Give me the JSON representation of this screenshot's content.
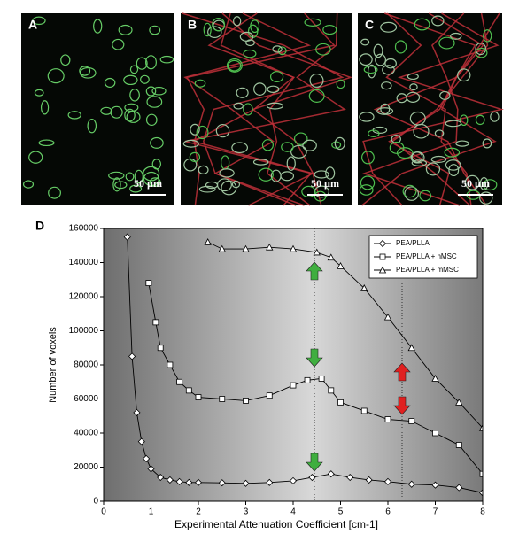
{
  "panels": [
    {
      "label": "A",
      "scale": "50 µm"
    },
    {
      "label": "B",
      "scale": "50 µm"
    },
    {
      "label": "C",
      "scale": "50 µm"
    }
  ],
  "chart_data": {
    "type": "line",
    "label": "D",
    "xlabel": "Experimental Attenuation Coefficient [cm-1]",
    "ylabel": "Number of voxels",
    "xlim": [
      0,
      8
    ],
    "xticks": [
      0,
      1,
      2,
      3,
      4,
      5,
      6,
      7,
      8
    ],
    "ylim": [
      0,
      160000
    ],
    "yticks": [
      0,
      20000,
      40000,
      60000,
      80000,
      100000,
      120000,
      140000,
      160000
    ],
    "legend": "top-right",
    "series": [
      {
        "name": "PEA/PLLA",
        "color": "#000000",
        "marker": "diamond",
        "x": [
          0.5,
          0.6,
          0.7,
          0.8,
          0.9,
          1.0,
          1.2,
          1.4,
          1.6,
          1.8,
          2.0,
          2.5,
          3.0,
          3.5,
          4.0,
          4.4,
          4.8,
          5.2,
          5.6,
          6.0,
          6.5,
          7.0,
          7.5,
          8.0
        ],
        "values": [
          155000,
          85000,
          52000,
          35000,
          25000,
          19000,
          14000,
          12500,
          11500,
          11000,
          11000,
          10800,
          10500,
          11000,
          12000,
          14000,
          16000,
          14000,
          12500,
          11500,
          10000,
          9500,
          8000,
          5000
        ]
      },
      {
        "name": "PEA/PLLA + hMSC",
        "color": "#000000",
        "marker": "square",
        "x": [
          0.95,
          1.1,
          1.2,
          1.4,
          1.6,
          1.8,
          2.0,
          2.5,
          3.0,
          3.5,
          4.0,
          4.3,
          4.6,
          4.8,
          5.0,
          5.5,
          6.0,
          6.5,
          7.0,
          7.5,
          8.0
        ],
        "values": [
          128000,
          105000,
          90000,
          80000,
          70000,
          65000,
          61000,
          60000,
          59000,
          62000,
          68000,
          71000,
          72000,
          65000,
          58000,
          53000,
          48000,
          47000,
          40000,
          33000,
          16000
        ]
      },
      {
        "name": "PEA/PLLA + mMSC",
        "color": "#000000",
        "marker": "triangle",
        "x": [
          2.2,
          2.5,
          3.0,
          3.5,
          4.0,
          4.5,
          4.8,
          5.0,
          5.5,
          6.0,
          6.5,
          7.0,
          7.5,
          8.0
        ],
        "values": [
          152000,
          148000,
          148000,
          149000,
          148000,
          146000,
          143000,
          138000,
          125000,
          108000,
          90000,
          72000,
          58000,
          43000
        ]
      }
    ]
  }
}
